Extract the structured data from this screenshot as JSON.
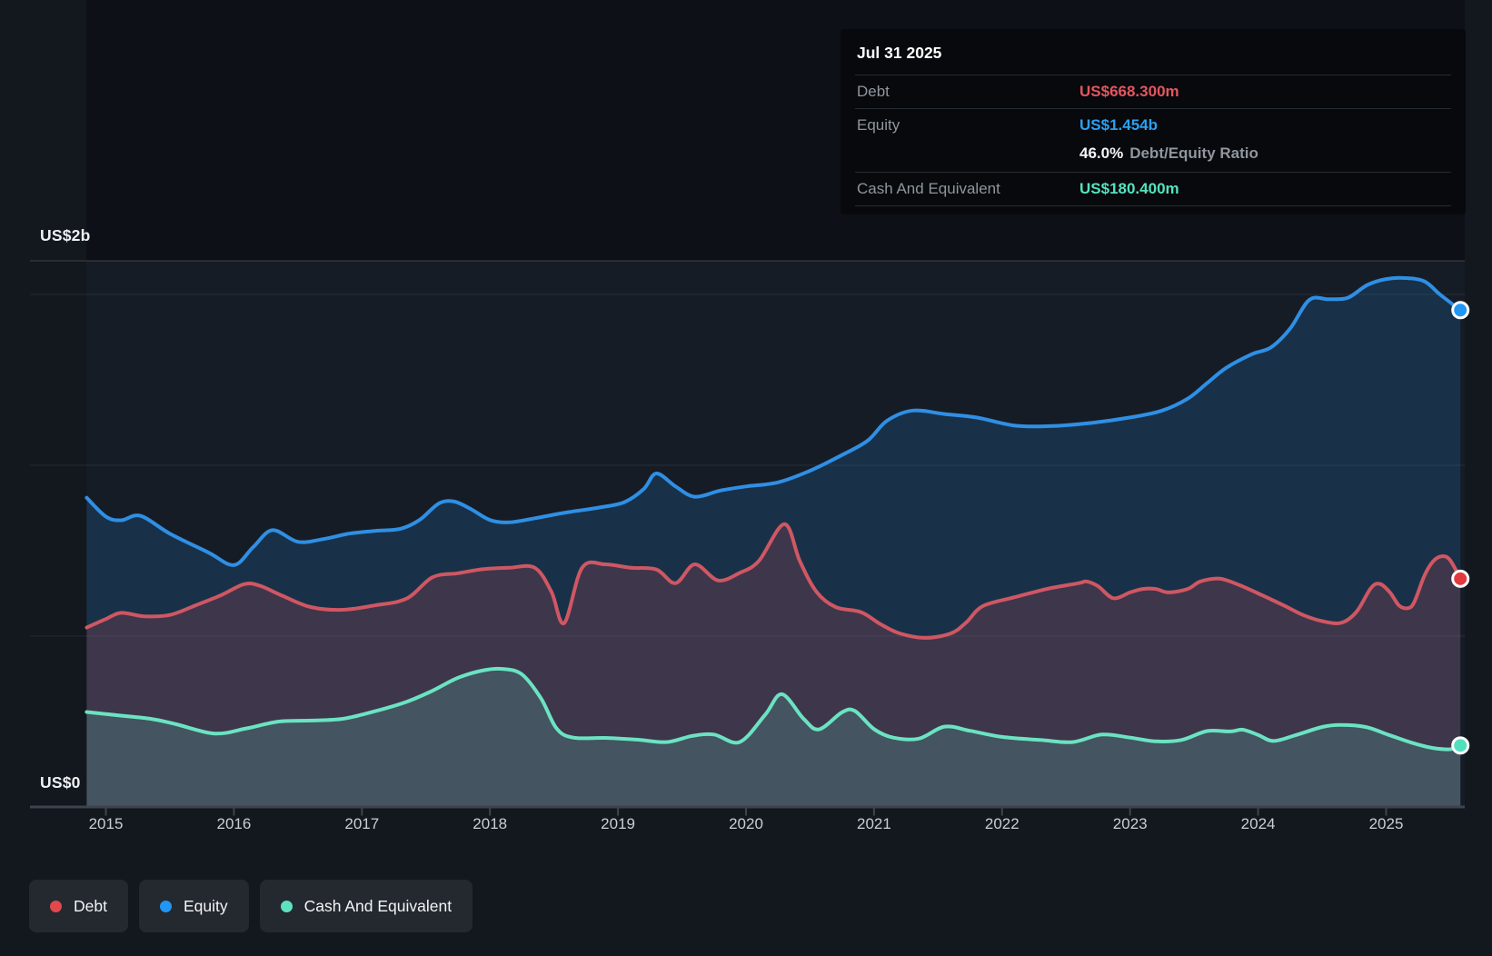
{
  "tooltip": {
    "date": "Jul 31 2025",
    "rows": [
      {
        "label": "Debt",
        "value": "US$668.300m",
        "color": "#e4565f"
      },
      {
        "label": "Equity",
        "value": "US$1.454b",
        "color": "#2ba0f0"
      },
      {
        "label": "Cash And Equivalent",
        "value": "US$180.400m",
        "color": "#55e2c0"
      }
    ],
    "ratio_value": "46.0%",
    "ratio_label": "Debt/Equity Ratio"
  },
  "y_axis": {
    "top_label": "US$2b",
    "bottom_label": "US$0"
  },
  "x_axis": {
    "years": [
      "2015",
      "2016",
      "2017",
      "2018",
      "2019",
      "2020",
      "2021",
      "2022",
      "2023",
      "2024",
      "2025"
    ]
  },
  "legend": {
    "items": [
      {
        "label": "Debt",
        "color": "#e2484d"
      },
      {
        "label": "Equity",
        "color": "#2196f3"
      },
      {
        "label": "Cash And Equivalent",
        "color": "#5fe1c0"
      }
    ]
  },
  "chart_data": {
    "type": "area",
    "x_unit": "decimal_year",
    "x_range": [
      2014.85,
      2025.58
    ],
    "ylim_billions": [
      0,
      2
    ],
    "gridlines_billions": [
      0.5,
      1.0,
      1.5
    ],
    "axis_max_label": "US$2b",
    "axis_min_label": "US$0",
    "latest_date": "Jul 31 2025",
    "series": [
      {
        "name": "Equity",
        "line_color": "#2f8fe5",
        "fill_color": "rgba(33,128,201,0.22)",
        "dot_color": "#2196f3",
        "latest_value_label": "US$1.454b",
        "points": [
          [
            2014.85,
            0.905
          ],
          [
            2015.0,
            0.85
          ],
          [
            2015.12,
            0.839
          ],
          [
            2015.27,
            0.852
          ],
          [
            2015.5,
            0.8
          ],
          [
            2015.8,
            0.745
          ],
          [
            2016.0,
            0.708
          ],
          [
            2016.15,
            0.76
          ],
          [
            2016.3,
            0.81
          ],
          [
            2016.5,
            0.776
          ],
          [
            2016.7,
            0.784
          ],
          [
            2016.9,
            0.8
          ],
          [
            2017.1,
            0.808
          ],
          [
            2017.3,
            0.814
          ],
          [
            2017.45,
            0.84
          ],
          [
            2017.6,
            0.888
          ],
          [
            2017.72,
            0.894
          ],
          [
            2017.85,
            0.872
          ],
          [
            2018.0,
            0.84
          ],
          [
            2018.15,
            0.833
          ],
          [
            2018.35,
            0.845
          ],
          [
            2018.6,
            0.862
          ],
          [
            2018.85,
            0.876
          ],
          [
            2019.05,
            0.892
          ],
          [
            2019.2,
            0.93
          ],
          [
            2019.3,
            0.976
          ],
          [
            2019.45,
            0.938
          ],
          [
            2019.6,
            0.908
          ],
          [
            2019.8,
            0.926
          ],
          [
            2020.0,
            0.938
          ],
          [
            2020.25,
            0.95
          ],
          [
            2020.5,
            0.984
          ],
          [
            2020.75,
            1.03
          ],
          [
            2020.95,
            1.072
          ],
          [
            2021.1,
            1.13
          ],
          [
            2021.3,
            1.16
          ],
          [
            2021.55,
            1.15
          ],
          [
            2021.8,
            1.14
          ],
          [
            2022.1,
            1.116
          ],
          [
            2022.4,
            1.115
          ],
          [
            2022.7,
            1.124
          ],
          [
            2023.0,
            1.14
          ],
          [
            2023.25,
            1.16
          ],
          [
            2023.45,
            1.195
          ],
          [
            2023.6,
            1.24
          ],
          [
            2023.75,
            1.285
          ],
          [
            2023.95,
            1.325
          ],
          [
            2024.1,
            1.345
          ],
          [
            2024.25,
            1.4
          ],
          [
            2024.4,
            1.484
          ],
          [
            2024.55,
            1.486
          ],
          [
            2024.7,
            1.49
          ],
          [
            2024.85,
            1.527
          ],
          [
            2025.0,
            1.545
          ],
          [
            2025.15,
            1.548
          ],
          [
            2025.3,
            1.538
          ],
          [
            2025.42,
            1.5
          ],
          [
            2025.58,
            1.454
          ]
        ]
      },
      {
        "name": "Debt",
        "line_color": "#cf5763",
        "fill_color": "rgba(210,76,92,0.21)",
        "dot_color": "#e2393f",
        "latest_value_label": "US$668.300m",
        "points": [
          [
            2014.85,
            0.525
          ],
          [
            2015.0,
            0.55
          ],
          [
            2015.12,
            0.568
          ],
          [
            2015.3,
            0.558
          ],
          [
            2015.5,
            0.562
          ],
          [
            2015.7,
            0.59
          ],
          [
            2015.9,
            0.62
          ],
          [
            2016.08,
            0.652
          ],
          [
            2016.2,
            0.648
          ],
          [
            2016.38,
            0.618
          ],
          [
            2016.6,
            0.585
          ],
          [
            2016.85,
            0.577
          ],
          [
            2017.1,
            0.59
          ],
          [
            2017.35,
            0.61
          ],
          [
            2017.55,
            0.672
          ],
          [
            2017.75,
            0.684
          ],
          [
            2017.95,
            0.696
          ],
          [
            2018.15,
            0.7
          ],
          [
            2018.35,
            0.7
          ],
          [
            2018.48,
            0.63
          ],
          [
            2018.58,
            0.538
          ],
          [
            2018.72,
            0.7
          ],
          [
            2018.9,
            0.71
          ],
          [
            2019.1,
            0.7
          ],
          [
            2019.3,
            0.695
          ],
          [
            2019.45,
            0.655
          ],
          [
            2019.6,
            0.71
          ],
          [
            2019.78,
            0.663
          ],
          [
            2019.95,
            0.685
          ],
          [
            2020.1,
            0.72
          ],
          [
            2020.3,
            0.828
          ],
          [
            2020.42,
            0.72
          ],
          [
            2020.55,
            0.63
          ],
          [
            2020.7,
            0.585
          ],
          [
            2020.9,
            0.57
          ],
          [
            2021.05,
            0.535
          ],
          [
            2021.2,
            0.508
          ],
          [
            2021.4,
            0.495
          ],
          [
            2021.6,
            0.508
          ],
          [
            2021.72,
            0.54
          ],
          [
            2021.85,
            0.588
          ],
          [
            2022.1,
            0.614
          ],
          [
            2022.35,
            0.638
          ],
          [
            2022.6,
            0.655
          ],
          [
            2022.66,
            0.66
          ],
          [
            2022.75,
            0.646
          ],
          [
            2022.87,
            0.611
          ],
          [
            2023.0,
            0.628
          ],
          [
            2023.1,
            0.638
          ],
          [
            2023.2,
            0.638
          ],
          [
            2023.3,
            0.628
          ],
          [
            2023.45,
            0.638
          ],
          [
            2023.55,
            0.66
          ],
          [
            2023.7,
            0.668
          ],
          [
            2023.85,
            0.65
          ],
          [
            2024.0,
            0.625
          ],
          [
            2024.2,
            0.59
          ],
          [
            2024.35,
            0.562
          ],
          [
            2024.5,
            0.544
          ],
          [
            2024.65,
            0.539
          ],
          [
            2024.77,
            0.572
          ],
          [
            2024.88,
            0.64
          ],
          [
            2024.95,
            0.653
          ],
          [
            2025.03,
            0.628
          ],
          [
            2025.1,
            0.59
          ],
          [
            2025.17,
            0.582
          ],
          [
            2025.22,
            0.6
          ],
          [
            2025.3,
            0.678
          ],
          [
            2025.37,
            0.72
          ],
          [
            2025.44,
            0.734
          ],
          [
            2025.5,
            0.722
          ],
          [
            2025.58,
            0.668
          ]
        ]
      },
      {
        "name": "Cash And Equivalent",
        "line_color": "#6be3c3",
        "fill_color": "rgba(99,224,193,0.18)",
        "dot_color": "#52dfbd",
        "latest_value_label": "US$180.400m",
        "points": [
          [
            2014.85,
            0.278
          ],
          [
            2015.1,
            0.268
          ],
          [
            2015.35,
            0.258
          ],
          [
            2015.55,
            0.242
          ],
          [
            2015.85,
            0.215
          ],
          [
            2016.1,
            0.23
          ],
          [
            2016.35,
            0.25
          ],
          [
            2016.6,
            0.253
          ],
          [
            2016.85,
            0.258
          ],
          [
            2017.1,
            0.28
          ],
          [
            2017.35,
            0.308
          ],
          [
            2017.55,
            0.34
          ],
          [
            2017.75,
            0.378
          ],
          [
            2017.95,
            0.4
          ],
          [
            2018.1,
            0.404
          ],
          [
            2018.25,
            0.388
          ],
          [
            2018.4,
            0.317
          ],
          [
            2018.52,
            0.23
          ],
          [
            2018.65,
            0.203
          ],
          [
            2018.9,
            0.202
          ],
          [
            2019.15,
            0.197
          ],
          [
            2019.38,
            0.19
          ],
          [
            2019.58,
            0.208
          ],
          [
            2019.75,
            0.212
          ],
          [
            2019.95,
            0.19
          ],
          [
            2020.15,
            0.27
          ],
          [
            2020.28,
            0.33
          ],
          [
            2020.45,
            0.258
          ],
          [
            2020.57,
            0.227
          ],
          [
            2020.75,
            0.277
          ],
          [
            2020.85,
            0.281
          ],
          [
            2021.0,
            0.228
          ],
          [
            2021.15,
            0.203
          ],
          [
            2021.35,
            0.2
          ],
          [
            2021.55,
            0.235
          ],
          [
            2021.75,
            0.223
          ],
          [
            2022.0,
            0.205
          ],
          [
            2022.3,
            0.196
          ],
          [
            2022.55,
            0.19
          ],
          [
            2022.78,
            0.212
          ],
          [
            2023.0,
            0.203
          ],
          [
            2023.2,
            0.192
          ],
          [
            2023.4,
            0.196
          ],
          [
            2023.6,
            0.222
          ],
          [
            2023.78,
            0.221
          ],
          [
            2023.88,
            0.226
          ],
          [
            2024.0,
            0.211
          ],
          [
            2024.12,
            0.193
          ],
          [
            2024.3,
            0.211
          ],
          [
            2024.5,
            0.234
          ],
          [
            2024.64,
            0.24
          ],
          [
            2024.84,
            0.234
          ],
          [
            2025.02,
            0.211
          ],
          [
            2025.2,
            0.188
          ],
          [
            2025.36,
            0.173
          ],
          [
            2025.5,
            0.169
          ],
          [
            2025.58,
            0.18
          ]
        ]
      }
    ]
  }
}
